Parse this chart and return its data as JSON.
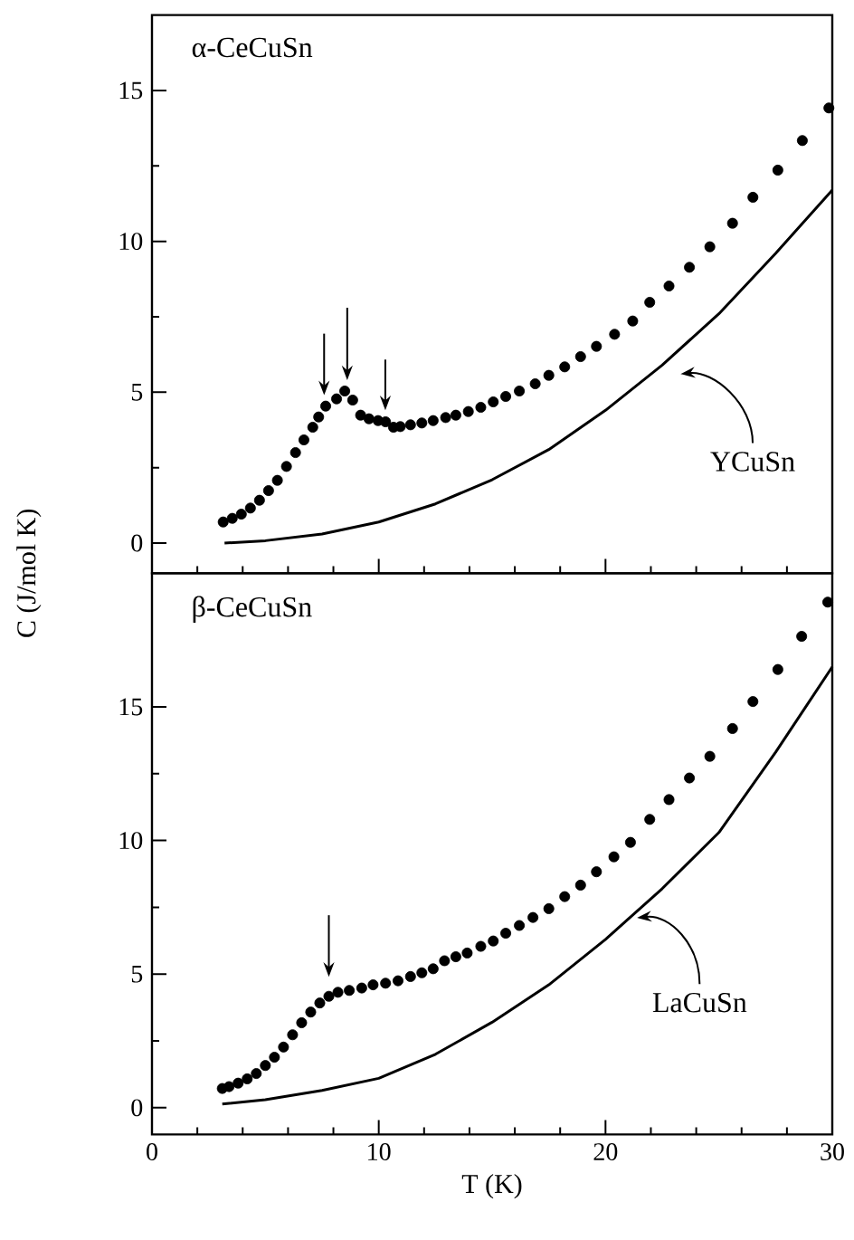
{
  "chart_data": [
    {
      "type": "scatter",
      "ylabel": "C (J/mol K)",
      "xlim": [
        0,
        30
      ],
      "ylim": [
        -1,
        17.5
      ],
      "xticks": [
        0,
        10,
        20,
        30
      ],
      "yticks": [
        0,
        5,
        10,
        15
      ],
      "tick_labels": "y",
      "annotations": [
        "α-CeCuSn",
        "YCuSn"
      ],
      "series": [
        {
          "type": "scatter",
          "marker": "circle",
          "color": "#000000",
          "x": [
            3.14,
            3.54,
            3.94,
            4.34,
            4.74,
            5.14,
            5.53,
            5.93,
            6.33,
            6.7,
            7.09,
            7.35,
            7.66,
            8.14,
            8.5,
            8.85,
            9.2,
            9.57,
            9.97,
            10.3,
            10.65,
            10.95,
            11.4,
            11.9,
            12.4,
            12.95,
            13.4,
            13.95,
            14.5,
            15.05,
            15.6,
            16.2,
            16.9,
            17.5,
            18.2,
            18.9,
            19.6,
            20.4,
            21.2,
            21.95,
            22.8,
            23.7,
            24.6,
            25.6,
            26.5,
            27.6,
            28.68,
            29.85
          ],
          "values": [
            0.7,
            0.82,
            0.96,
            1.16,
            1.42,
            1.74,
            2.08,
            2.54,
            3.0,
            3.42,
            3.84,
            4.18,
            4.54,
            4.78,
            5.04,
            4.74,
            4.24,
            4.12,
            4.06,
            4.02,
            3.84,
            3.86,
            3.92,
            3.98,
            4.06,
            4.16,
            4.24,
            4.36,
            4.5,
            4.68,
            4.86,
            5.04,
            5.28,
            5.56,
            5.84,
            6.18,
            6.52,
            6.92,
            7.36,
            7.98,
            8.52,
            9.14,
            9.82,
            10.6,
            11.46,
            12.36,
            13.34,
            14.42
          ]
        },
        {
          "type": "line",
          "marker": "none",
          "color": "#000000",
          "x": [
            3.2,
            5,
            7.5,
            10,
            12.5,
            15,
            17.5,
            20,
            22.5,
            25,
            27.5,
            30
          ],
          "values": [
            0,
            0.08,
            0.3,
            0.7,
            1.3,
            2.1,
            3.1,
            4.4,
            5.9,
            7.6,
            9.6,
            11.7
          ]
        }
      ]
    },
    {
      "type": "scatter",
      "xlabel": "T (K)",
      "xlim": [
        0,
        30
      ],
      "ylim": [
        -1,
        20
      ],
      "xticks": [
        0,
        10,
        20,
        30
      ],
      "yticks": [
        0,
        5,
        10,
        15
      ],
      "annotations": [
        "β-CeCuSn",
        "LaCuSn"
      ],
      "series": [
        {
          "type": "scatter",
          "marker": "circle",
          "color": "#000000",
          "x": [
            3.1,
            3.4,
            3.8,
            4.2,
            4.6,
            5.0,
            5.4,
            5.8,
            6.2,
            6.6,
            7.0,
            7.4,
            7.8,
            8.2,
            8.7,
            9.25,
            9.75,
            10.3,
            10.85,
            11.4,
            11.9,
            12.4,
            12.9,
            13.4,
            13.9,
            14.5,
            15.05,
            15.6,
            16.2,
            16.8,
            17.5,
            18.2,
            18.9,
            19.6,
            20.37,
            21.1,
            21.95,
            22.8,
            23.7,
            24.6,
            25.6,
            26.5,
            27.6,
            28.65,
            29.8
          ],
          "values": [
            0.72,
            0.79,
            0.92,
            1.08,
            1.28,
            1.58,
            1.89,
            2.27,
            2.73,
            3.18,
            3.58,
            3.92,
            4.17,
            4.32,
            4.39,
            4.48,
            4.6,
            4.66,
            4.75,
            4.91,
            5.05,
            5.2,
            5.5,
            5.65,
            5.79,
            6.04,
            6.24,
            6.53,
            6.82,
            7.12,
            7.45,
            7.9,
            8.33,
            8.83,
            9.39,
            9.93,
            10.79,
            11.53,
            12.34,
            13.15,
            14.19,
            15.2,
            16.4,
            17.64,
            18.92
          ]
        },
        {
          "type": "line",
          "marker": "none",
          "color": "#000000",
          "x": [
            3.1,
            5,
            7.5,
            10,
            12.5,
            15,
            17.5,
            20,
            22.5,
            25,
            27.5,
            30
          ],
          "values": [
            0.14,
            0.3,
            0.65,
            1.1,
            2.0,
            3.2,
            4.6,
            6.3,
            8.2,
            10.3,
            13.3,
            16.5
          ]
        }
      ]
    }
  ]
}
